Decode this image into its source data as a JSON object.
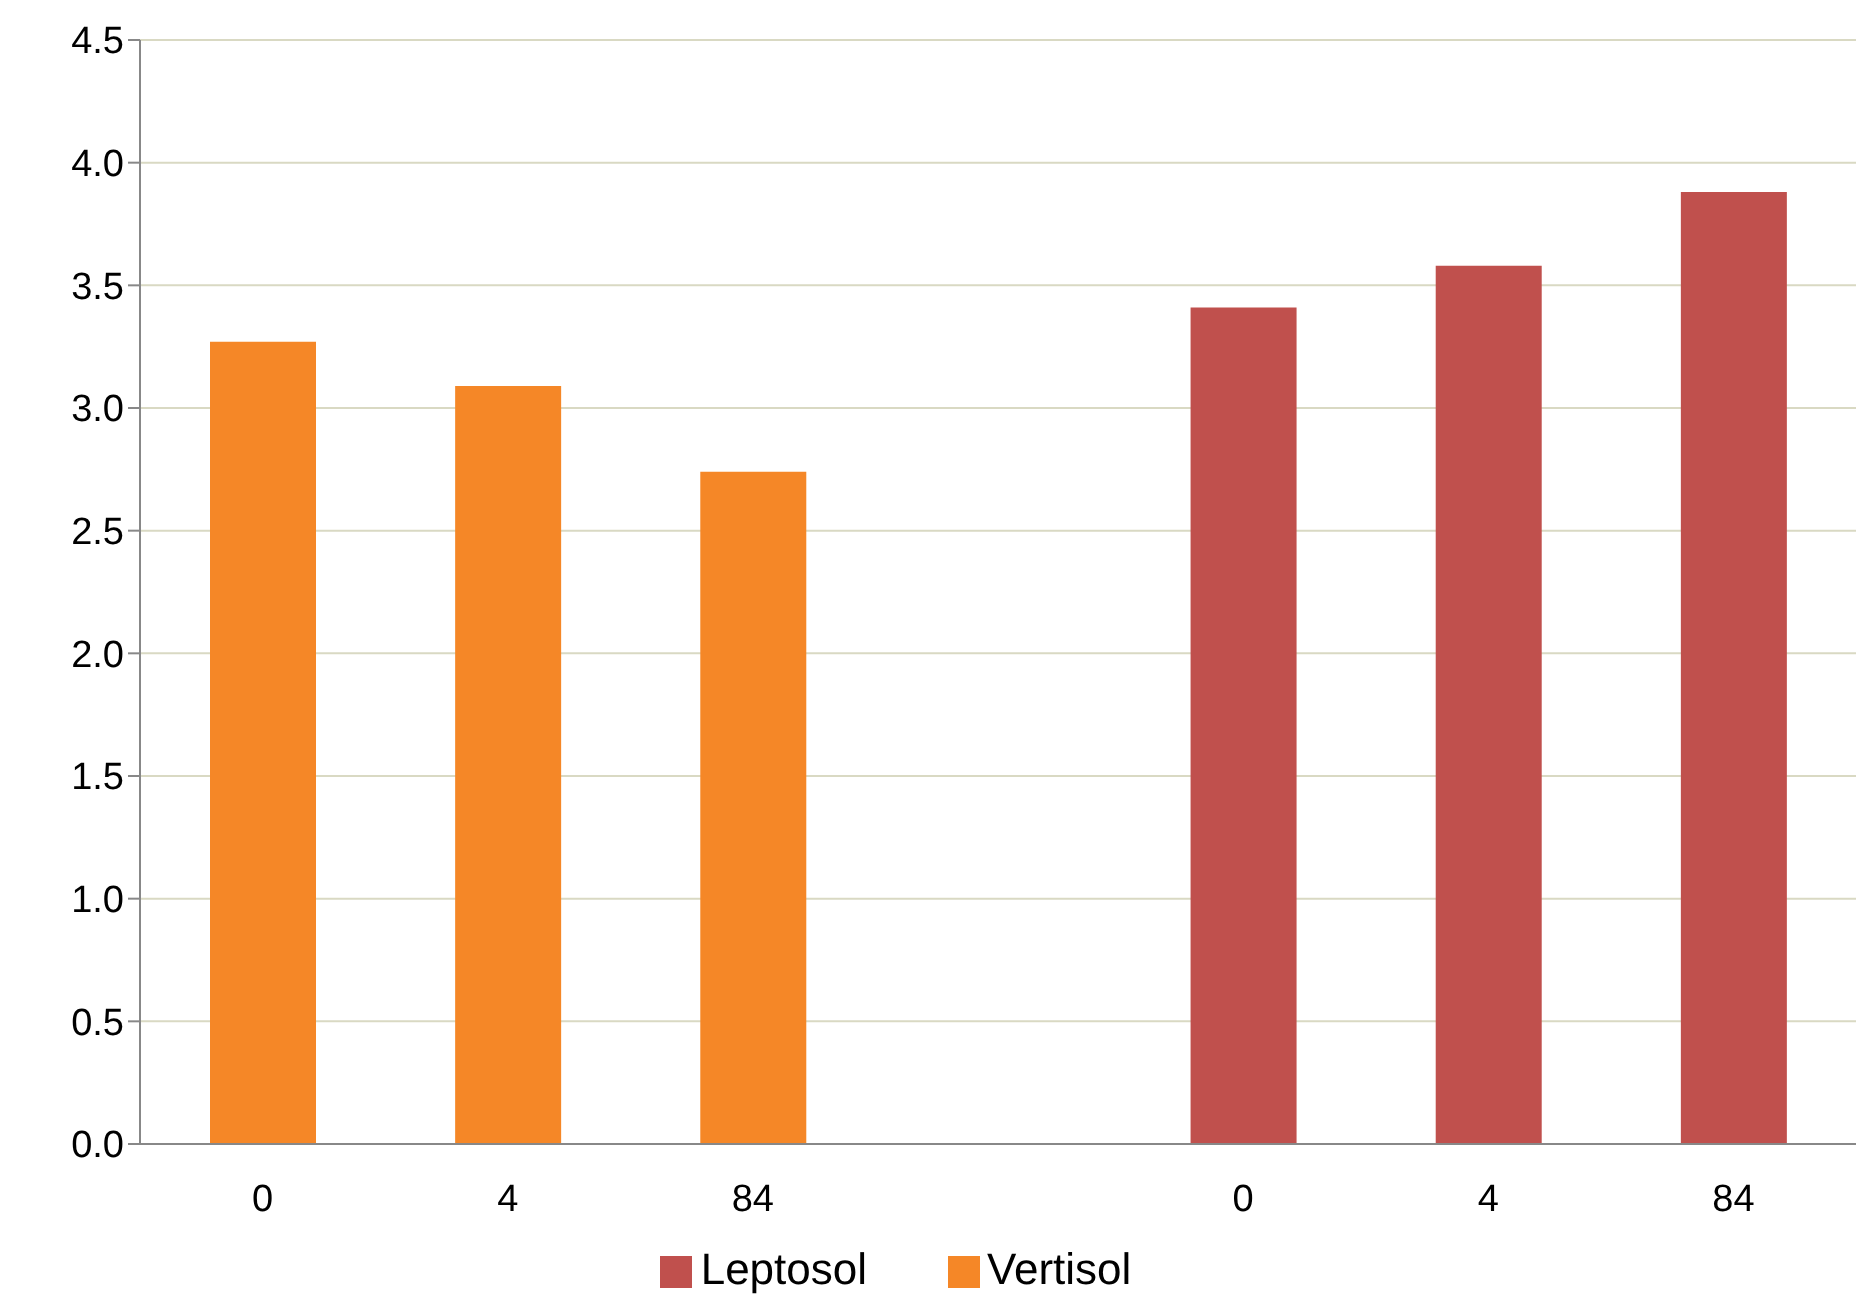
{
  "chart_data": {
    "type": "bar",
    "categories": [
      "0",
      "4",
      "84",
      null,
      "0",
      "4",
      "84"
    ],
    "series": [
      {
        "name": "Vertisol",
        "color": "#f58727",
        "values": [
          3.27,
          3.09,
          2.74,
          null,
          null,
          null,
          null
        ]
      },
      {
        "name": "Leptosol",
        "color": "#c0504d",
        "values": [
          null,
          null,
          null,
          null,
          3.41,
          3.58,
          3.88
        ]
      }
    ],
    "ylim": [
      0,
      4.5
    ],
    "yticks": [
      {
        "value": 0,
        "label": "0.0"
      },
      {
        "value": 0.5,
        "label": "0.5"
      },
      {
        "value": 1,
        "label": "1.0"
      },
      {
        "value": 1.5,
        "label": "1.5"
      },
      {
        "value": 2,
        "label": "2.0"
      },
      {
        "value": 2.5,
        "label": "2.5"
      },
      {
        "value": 3,
        "label": "3.0"
      },
      {
        "value": 3.5,
        "label": "3.5"
      },
      {
        "value": 4,
        "label": "4.0"
      },
      {
        "value": 4.5,
        "label": "4.5"
      }
    ],
    "grid": "y",
    "legend": "bottom"
  }
}
